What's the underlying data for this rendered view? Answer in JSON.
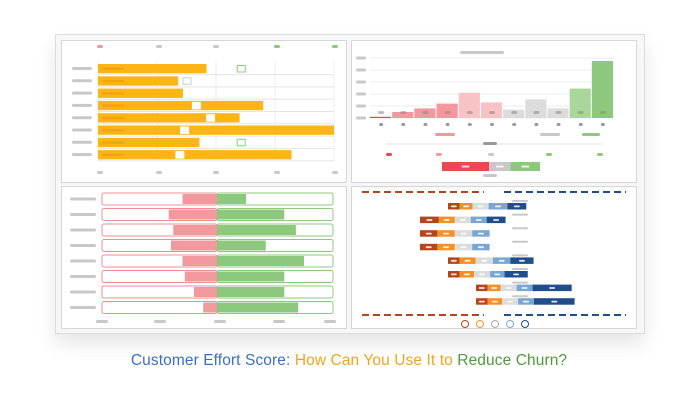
{
  "caption": {
    "part1": "Customer Effort Score: ",
    "part2": "How Can You Use It to ",
    "part3": "Reduce Churn?",
    "colors": [
      "#3b6fc4",
      "#f2a51a",
      "#4f9a3b"
    ]
  },
  "colors": {
    "orange": "#fdb515",
    "red": "#e8494f",
    "pink": "#f1999c",
    "light_pink": "#f9c2c4",
    "grey": "#dcdcdc",
    "light_green": "#a9d79b",
    "green": "#8cc97d",
    "dark_orange": "#b5451b",
    "mid_orange": "#f39222",
    "light_blue": "#79a7d3",
    "navy": "#1f4e8a"
  },
  "chart_data": [
    {
      "type": "bar",
      "orientation": "horizontal",
      "values": [
        0.46,
        0.34,
        0.36,
        0.7,
        0.6,
        1.0,
        0.43,
        0.82
      ],
      "markers": [
        0.59,
        0.36,
        0.41,
        0.4,
        0.46,
        0.35,
        0.59,
        0.33
      ],
      "marker_colors": [
        "#8cc97d",
        "#cccccc",
        "#ffffff",
        "#ffffff",
        "#ffffff",
        "#ffffff",
        "#8cc97d",
        "#ffffff"
      ]
    },
    {
      "type": "bar",
      "values": [
        2,
        10,
        16,
        24,
        42,
        26,
        14,
        31,
        16,
        49,
        95
      ],
      "bar_colors": [
        "#e8494f",
        "#f1999c",
        "#f1999c",
        "#f1999c",
        "#f9c2c4",
        "#f9c2c4",
        "#dcdcdc",
        "#dcdcdc",
        "#dcdcdc",
        "#a9d79b",
        "#8cc97d"
      ],
      "ylim": [
        0,
        100
      ],
      "nps_bar": {
        "detractors": 0.48,
        "passives": 0.22,
        "promoters": 0.3
      }
    },
    {
      "type": "bar",
      "orientation": "diverging",
      "negative": [
        0.3,
        0.42,
        0.38,
        0.4,
        0.3,
        0.28,
        0.2,
        0.12
      ],
      "positive": [
        0.25,
        0.58,
        0.68,
        0.42,
        0.75,
        0.58,
        0.58,
        0.7
      ]
    },
    {
      "type": "bar",
      "orientation": "stacked-horizontal",
      "segment_colors": [
        "#b5451b",
        "#f39222",
        "#dcdcdc",
        "#79a7d3",
        "#1f4e8a"
      ],
      "rows": [
        [
          0.0,
          0.08,
          0.09,
          0.11,
          0.13,
          0.13
        ],
        [
          0.13,
          0.11,
          0.11,
          0.11,
          0.13,
          0.0
        ],
        [
          0.0,
          0.12,
          0.12,
          0.12,
          0.12,
          0.0
        ],
        [
          0.0,
          0.12,
          0.12,
          0.12,
          0.12,
          0.0
        ],
        [
          0.0,
          0.08,
          0.11,
          0.12,
          0.12,
          0.16
        ],
        [
          0.0,
          0.08,
          0.1,
          0.11,
          0.1,
          0.16
        ],
        [
          0.0,
          0.08,
          0.09,
          0.11,
          0.11,
          0.27
        ],
        [
          0.0,
          0.08,
          0.1,
          0.11,
          0.11,
          0.28
        ]
      ],
      "face_icons": [
        "very-unhappy-face",
        "unhappy-face",
        "neutral-face",
        "happy-face",
        "very-happy-face"
      ]
    }
  ]
}
